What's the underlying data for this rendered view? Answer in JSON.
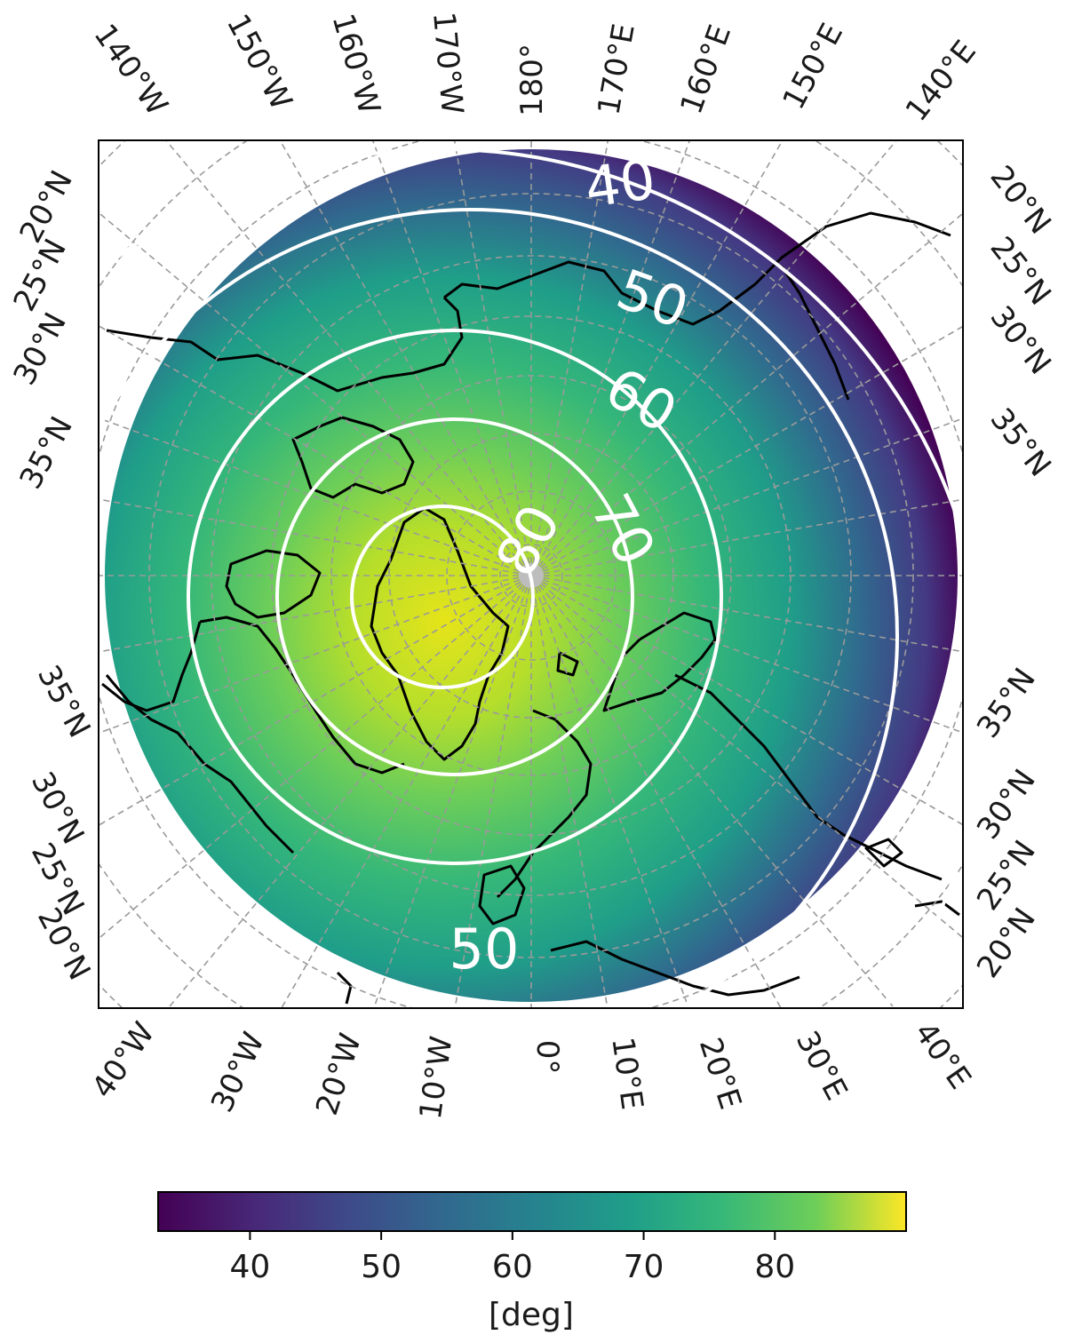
{
  "map": {
    "projection": "north-polar-stereographic",
    "center_lon_bottom": "0°",
    "field": "viridis-gradient",
    "contours": [
      {
        "level": 40,
        "label": "40"
      },
      {
        "level": 50,
        "label": "50"
      },
      {
        "level": 60,
        "label": "60"
      },
      {
        "level": 70,
        "label": "70"
      },
      {
        "level": 80,
        "label": "80"
      }
    ],
    "extra_contour_labels": [
      {
        "level": 50,
        "label": "50"
      }
    ],
    "graticule_color": "#9a9a9a",
    "contour_color": "#ffffff",
    "coastline_color": "#000000"
  },
  "axes": {
    "top_labels": [
      "140°W",
      "150°W",
      "160°W",
      "170°W",
      "180°",
      "170°E",
      "160°E",
      "150°E",
      "140°E"
    ],
    "bottom_labels": [
      "40°W",
      "30°W",
      "20°W",
      "10°W",
      "0°",
      "10°E",
      "20°E",
      "30°E",
      "40°E"
    ],
    "left_upper_labels": [
      "20°N",
      "25°N",
      "30°N",
      "35°N"
    ],
    "left_lower_labels": [
      "35°N",
      "30°N",
      "25°N",
      "20°N"
    ],
    "right_upper_labels": [
      "20°N",
      "25°N",
      "30°N",
      "35°N"
    ],
    "right_lower_labels": [
      "35°N",
      "30°N",
      "25°N",
      "20°N"
    ]
  },
  "colorbar": {
    "colormap": "viridis",
    "colors": [
      "#440154",
      "#3b528b",
      "#21918c",
      "#5ec962",
      "#fde725"
    ],
    "min": 33,
    "max": 90,
    "ticks": [
      40,
      50,
      60,
      70,
      80
    ],
    "tick_labels": [
      "40",
      "50",
      "60",
      "70",
      "80"
    ],
    "label": "[deg]"
  }
}
